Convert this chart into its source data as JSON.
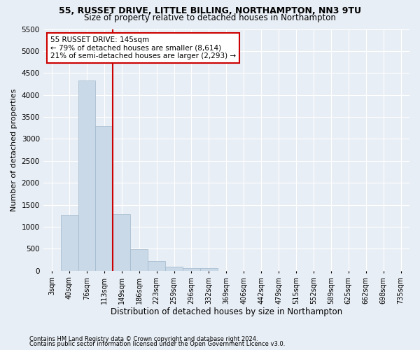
{
  "title1": "55, RUSSET DRIVE, LITTLE BILLING, NORTHAMPTON, NN3 9TU",
  "title2": "Size of property relative to detached houses in Northampton",
  "xlabel": "Distribution of detached houses by size in Northampton",
  "ylabel": "Number of detached properties",
  "bar_labels": [
    "3sqm",
    "40sqm",
    "76sqm",
    "113sqm",
    "149sqm",
    "186sqm",
    "223sqm",
    "259sqm",
    "296sqm",
    "332sqm",
    "369sqm",
    "406sqm",
    "442sqm",
    "479sqm",
    "515sqm",
    "552sqm",
    "589sqm",
    "625sqm",
    "662sqm",
    "698sqm",
    "735sqm"
  ],
  "bar_values": [
    0,
    1270,
    4330,
    3300,
    1280,
    490,
    215,
    90,
    65,
    55,
    0,
    0,
    0,
    0,
    0,
    0,
    0,
    0,
    0,
    0,
    0
  ],
  "bar_color": "#c9d9e8",
  "bar_edge_color": "#a0b8cc",
  "bar_width": 1.0,
  "ylim": [
    0,
    5500
  ],
  "yticks": [
    0,
    500,
    1000,
    1500,
    2000,
    2500,
    3000,
    3500,
    4000,
    4500,
    5000,
    5500
  ],
  "red_line_index": 4,
  "annotation_text": "55 RUSSET DRIVE: 145sqm\n← 79% of detached houses are smaller (8,614)\n21% of semi-detached houses are larger (2,293) →",
  "annotation_box_color": "#ffffff",
  "annotation_border_color": "#cc0000",
  "footnote1": "Contains HM Land Registry data © Crown copyright and database right 2024.",
  "footnote2": "Contains public sector information licensed under the Open Government Licence v3.0.",
  "background_color": "#e8eef5",
  "grid_color": "#ffffff",
  "title1_fontsize": 9,
  "title2_fontsize": 8.5,
  "xlabel_fontsize": 8.5,
  "ylabel_fontsize": 8,
  "tick_fontsize": 7.5,
  "xtick_fontsize": 7,
  "annotation_fontsize": 7.5,
  "footnote_fontsize": 6
}
